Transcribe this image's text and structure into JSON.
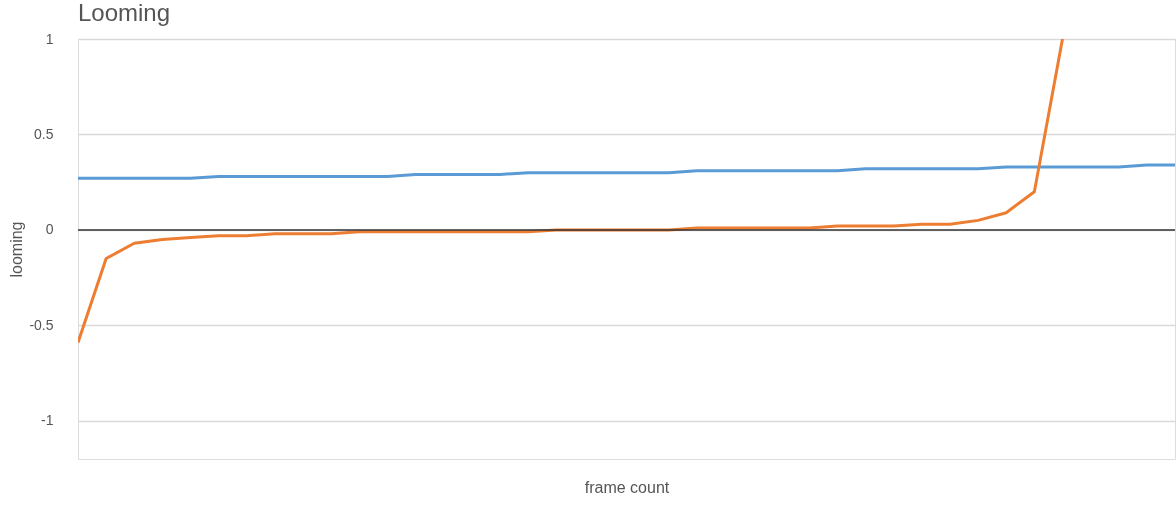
{
  "chart_data": {
    "type": "line",
    "title": "Looming",
    "xlabel": "frame count",
    "ylabel": "looming",
    "categories": [
      null,
      null,
      null,
      null,
      null,
      null,
      null,
      null,
      null,
      null,
      null,
      null,
      null,
      null,
      null,
      null,
      null,
      null,
      null,
      null,
      null,
      null,
      null,
      null,
      null,
      null,
      null,
      null,
      null,
      null,
      null,
      null,
      null,
      null,
      null,
      null,
      null,
      null,
      null,
      null
    ],
    "series": [
      {
        "color": "#5b9bd5",
        "values": [
          0.27,
          0.27,
          0.27,
          0.27,
          0.27,
          0.28,
          0.28,
          0.28,
          0.28,
          0.28,
          0.28,
          0.28,
          0.29,
          0.29,
          0.29,
          0.29,
          0.3,
          0.3,
          0.3,
          0.3,
          0.3,
          0.3,
          0.31,
          0.31,
          0.31,
          0.31,
          0.31,
          0.31,
          0.32,
          0.32,
          0.32,
          0.32,
          0.32,
          0.33,
          0.33,
          0.33,
          0.33,
          0.33,
          0.34,
          0.34
        ]
      },
      {
        "color": "#ed7d31",
        "values": [
          -0.59,
          -0.15,
          -0.07,
          -0.05,
          -0.04,
          -0.03,
          -0.03,
          -0.02,
          -0.02,
          -0.02,
          -0.01,
          -0.01,
          -0.01,
          -0.01,
          -0.01,
          -0.01,
          -0.01,
          0,
          0,
          0,
          0,
          0,
          0.01,
          0.01,
          0.01,
          0.01,
          0.01,
          0.02,
          0.02,
          0.02,
          0.03,
          0.03,
          0.05,
          0.09,
          0.2,
          1.0,
          null,
          null,
          null,
          null
        ]
      }
    ],
    "ylim": [
      -1.2,
      1
    ],
    "yticks": [
      -1,
      -0.5,
      0,
      0.5,
      1
    ],
    "grid": "y",
    "tick_labels": "y",
    "ref_lines": [
      {
        "axis": "y",
        "value": 0,
        "color": "#333333"
      }
    ]
  }
}
